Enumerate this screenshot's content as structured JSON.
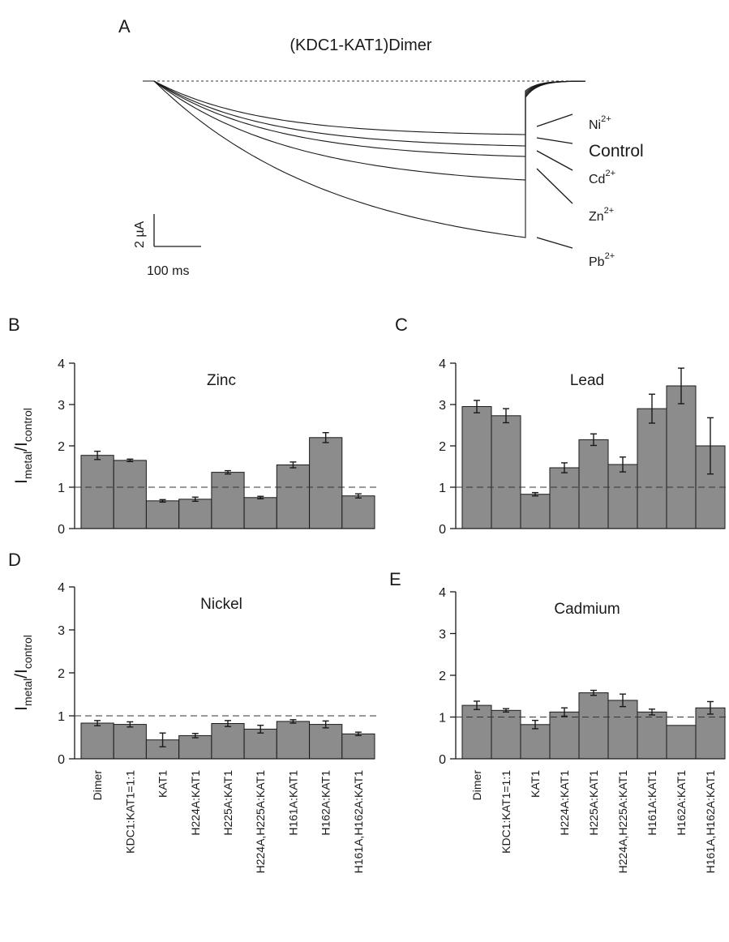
{
  "panel_a": {
    "letter": "A",
    "title": "(KDC1-KAT1)Dimer",
    "scale_current": "2 µA",
    "scale_time": "100 ms",
    "traces": [
      {
        "ion": "Ni",
        "sup": "2+"
      },
      {
        "ion": "Control",
        "sup": ""
      },
      {
        "ion": "Cd",
        "sup": "2+"
      },
      {
        "ion": "Zn",
        "sup": "2+"
      },
      {
        "ion": "Pb",
        "sup": "2+"
      }
    ]
  },
  "ylabel": {
    "main": "I",
    "sub1": "metal",
    "slash": "/I",
    "sub2": "control"
  },
  "chart_data": [
    {
      "panel": "B",
      "type": "bar",
      "title": "Zinc",
      "categories": [
        "Dimer",
        "KDC1:KAT1=1:1",
        "KAT1",
        "H224A:KAT1",
        "H225A:KAT1",
        "H224A,H225A:KAT1",
        "H161A:KAT1",
        "H162A:KAT1",
        "H161A,H162A:KAT1"
      ],
      "values": [
        1.77,
        1.65,
        0.67,
        0.71,
        1.36,
        0.75,
        1.54,
        2.2,
        0.79
      ],
      "errors": [
        0.1,
        0.03,
        0.03,
        0.05,
        0.04,
        0.03,
        0.07,
        0.12,
        0.05
      ],
      "ylim": [
        0,
        4
      ],
      "yticks": [
        0,
        1,
        2,
        3,
        4
      ],
      "reference_line": 1
    },
    {
      "panel": "C",
      "type": "bar",
      "title": "Lead",
      "categories": [
        "Dimer",
        "KDC1:KAT1=1:1",
        "KAT1",
        "H224A:KAT1",
        "H225A:KAT1",
        "H224A,H225A:KAT1",
        "H161A:KAT1",
        "H162A:KAT1",
        "H161A,H162A:KAT1"
      ],
      "values": [
        2.95,
        2.73,
        0.83,
        1.47,
        2.15,
        1.55,
        2.9,
        3.45,
        2.0
      ],
      "errors": [
        0.15,
        0.17,
        0.04,
        0.12,
        0.14,
        0.18,
        0.35,
        0.43,
        0.68
      ],
      "ylim": [
        0,
        4
      ],
      "yticks": [
        0,
        1,
        2,
        3,
        4
      ],
      "reference_line": 1
    },
    {
      "panel": "D",
      "type": "bar",
      "title": "Nickel",
      "categories": [
        "Dimer",
        "KDC1:KAT1=1:1",
        "KAT1",
        "H224A:KAT1",
        "H225A:KAT1",
        "H224A,H225A:KAT1",
        "H161A:KAT1",
        "H162A:KAT1",
        "H161A,H162A:KAT1"
      ],
      "values": [
        0.83,
        0.8,
        0.44,
        0.54,
        0.82,
        0.69,
        0.87,
        0.8,
        0.58
      ],
      "errors": [
        0.06,
        0.06,
        0.16,
        0.05,
        0.07,
        0.09,
        0.04,
        0.08,
        0.04
      ],
      "ylim": [
        0,
        4
      ],
      "yticks": [
        0,
        1,
        2,
        3,
        4
      ],
      "reference_line": 1
    },
    {
      "panel": "E",
      "type": "bar",
      "title": "Cadmium",
      "categories": [
        "Dimer",
        "KDC1:KAT1=1:1",
        "KAT1",
        "H224A:KAT1",
        "H225A:KAT1",
        "H224A,H225A:KAT1",
        "H161A:KAT1",
        "H162A:KAT1",
        "H161A,H162A:KAT1"
      ],
      "values": [
        1.28,
        1.16,
        0.82,
        1.12,
        1.58,
        1.4,
        1.12,
        0.8,
        1.22
      ],
      "errors": [
        0.1,
        0.04,
        0.1,
        0.1,
        0.06,
        0.15,
        0.07,
        0.0,
        0.15
      ],
      "ylim": [
        0,
        4
      ],
      "yticks": [
        0,
        1,
        2,
        3,
        4
      ],
      "reference_line": 1
    }
  ]
}
